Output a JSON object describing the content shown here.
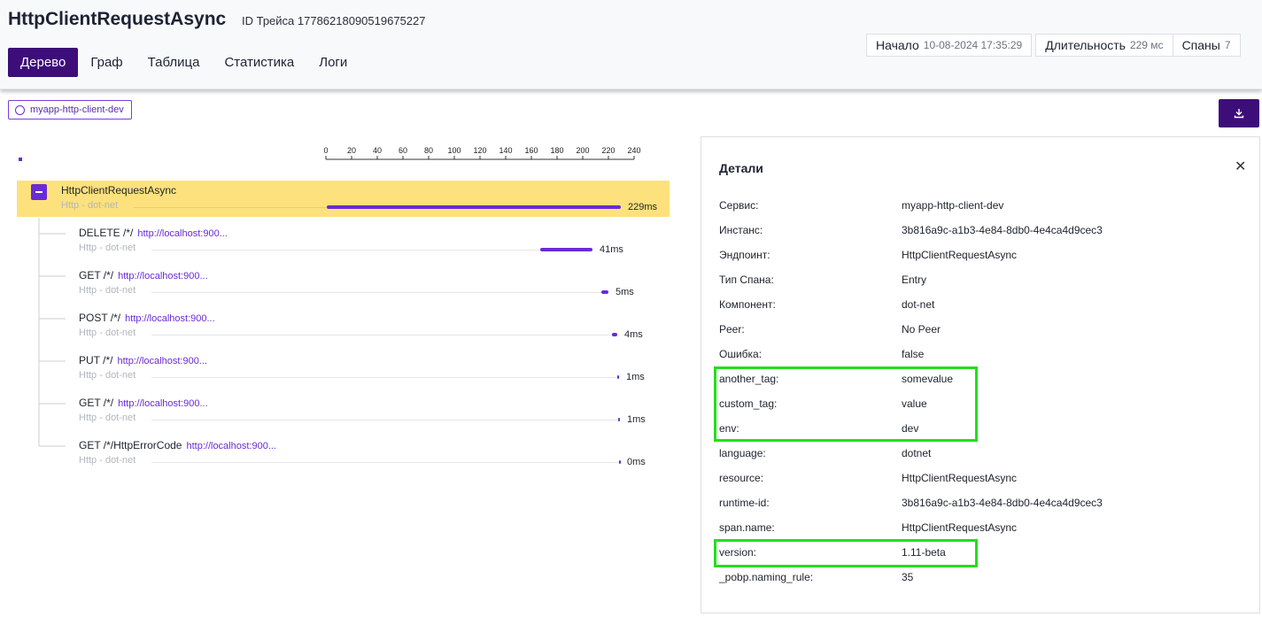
{
  "header": {
    "title": "HttpClientRequestAsync",
    "trace_id": "ID Трейса 17786218090519675227",
    "tabs": [
      {
        "label": "Дерево",
        "active": true
      },
      {
        "label": "Граф",
        "active": false
      },
      {
        "label": "Таблица",
        "active": false
      },
      {
        "label": "Статистика",
        "active": false
      },
      {
        "label": "Логи",
        "active": false
      }
    ],
    "stats": {
      "start_label": "Начало",
      "start_value": "10-08-2024 17:35:29",
      "duration_label": "Длительность",
      "duration_value": "229 мс",
      "spans_label": "Спаны",
      "spans_value": "7"
    }
  },
  "service_tag": "myapp-http-client-dev",
  "download_icon": "download-icon",
  "timeline": {
    "ticks": [
      "0",
      "20",
      "40",
      "60",
      "80",
      "100",
      "120",
      "140",
      "160",
      "180",
      "200",
      "220",
      "240"
    ]
  },
  "spans": [
    {
      "name": "HttpClientRequestAsync",
      "link": "",
      "sub": "Http - dot-net",
      "duration": "229ms"
    },
    {
      "name": "DELETE /*/",
      "link": "http://localhost:900...",
      "sub": "Http - dot-net",
      "duration": "41ms"
    },
    {
      "name": "GET /*/",
      "link": "http://localhost:900...",
      "sub": "Http - dot-net",
      "duration": "5ms"
    },
    {
      "name": "POST /*/",
      "link": "http://localhost:900...",
      "sub": "Http - dot-net",
      "duration": "4ms"
    },
    {
      "name": "PUT /*/",
      "link": "http://localhost:900...",
      "sub": "Http - dot-net",
      "duration": "1ms"
    },
    {
      "name": "GET /*/",
      "link": "http://localhost:900...",
      "sub": "Http - dot-net",
      "duration": "1ms"
    },
    {
      "name": "GET /*/HttpErrorCode",
      "link": "http://localhost:900...",
      "sub": "Http - dot-net",
      "duration": "0ms"
    }
  ],
  "details": {
    "title": "Детали",
    "rows": [
      {
        "key": "Сервис:",
        "value": "myapp-http-client-dev"
      },
      {
        "key": "Инстанс:",
        "value": "3b816a9c-a1b3-4e84-8db0-4e4ca4d9cec3"
      },
      {
        "key": "Эндпоинт:",
        "value": "HttpClientRequestAsync"
      },
      {
        "key": "Тип Спана:",
        "value": "Entry"
      },
      {
        "key": "Компонент:",
        "value": "dot-net"
      },
      {
        "key": "Peer:",
        "value": "No Peer"
      },
      {
        "key": "Ошибка:",
        "value": "false"
      },
      {
        "key": "another_tag:",
        "value": "somevalue"
      },
      {
        "key": "custom_tag:",
        "value": "value"
      },
      {
        "key": "env:",
        "value": "dev"
      },
      {
        "key": "language:",
        "value": "dotnet"
      },
      {
        "key": "resource:",
        "value": "HttpClientRequestAsync"
      },
      {
        "key": "runtime-id:",
        "value": "3b816a9c-a1b3-4e84-8db0-4e4ca4d9cec3"
      },
      {
        "key": "span.name:",
        "value": "HttpClientRequestAsync"
      },
      {
        "key": "version:",
        "value": "1.11-beta"
      },
      {
        "key": "_pobp.naming_rule:",
        "value": "35"
      }
    ]
  },
  "colors": {
    "accent": "#3d0e7a",
    "bar": "#6a2bd4",
    "selected": "#fde17c",
    "highlight": "#22e01a"
  }
}
